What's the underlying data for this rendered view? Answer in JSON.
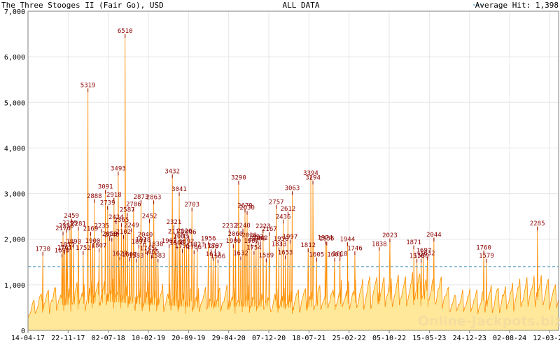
{
  "header": {
    "title": "The Three Stooges II (Fair Go), USD",
    "center_label": "ALL DATA",
    "legend_label": "Average Hit: 1,398"
  },
  "watermark": "Online-Jackpots.biz",
  "colors": {
    "fill": "#ffe89a",
    "line": "#ff8c00",
    "average": "#3a8fb7",
    "grid": "#e6e6e6",
    "peak_label": "#8b0000"
  },
  "chart_data": {
    "type": "area",
    "title": "The Three Stooges II (Fair Go), USD",
    "xlabel": "",
    "ylabel": "",
    "ylim": [
      0,
      7000
    ],
    "y_ticks": [
      "0",
      "1,000",
      "2,000",
      "3,000",
      "4,000",
      "5,000",
      "6,000",
      "7,000"
    ],
    "y_tick_values": [
      0,
      1000,
      2000,
      3000,
      4000,
      5000,
      6000,
      7000
    ],
    "x_ticks": [
      "14-04-17",
      "22-11-17",
      "02-07-18",
      "10-02-19",
      "20-09-19",
      "29-04-20",
      "07-12-20",
      "18-07-21",
      "25-02-22",
      "05-10-22",
      "15-05-23",
      "24-12-23",
      "02-08-24",
      "12-03-25"
    ],
    "average_hit": 1398,
    "grid": true,
    "legend_position": "top-right",
    "peaks": [
      {
        "t": 0.028,
        "v": 1730
      },
      {
        "t": 0.066,
        "v": 2176
      },
      {
        "t": 0.072,
        "v": 2236
      },
      {
        "t": 0.079,
        "v": 2295
      },
      {
        "t": 0.082,
        "v": 2459
      },
      {
        "t": 0.064,
        "v": 1693
      },
      {
        "t": 0.069,
        "v": 1761
      },
      {
        "t": 0.074,
        "v": 1817
      },
      {
        "t": 0.086,
        "v": 1890
      },
      {
        "t": 0.095,
        "v": 2281
      },
      {
        "t": 0.104,
        "v": 1752
      },
      {
        "t": 0.113,
        "v": 5319
      },
      {
        "t": 0.118,
        "v": 2169
      },
      {
        "t": 0.122,
        "v": 1900
      },
      {
        "t": 0.125,
        "v": 2888
      },
      {
        "t": 0.134,
        "v": 1807
      },
      {
        "t": 0.139,
        "v": 2235
      },
      {
        "t": 0.146,
        "v": 3091
      },
      {
        "t": 0.15,
        "v": 2739
      },
      {
        "t": 0.154,
        "v": 2058
      },
      {
        "t": 0.158,
        "v": 2040
      },
      {
        "t": 0.162,
        "v": 2918
      },
      {
        "t": 0.166,
        "v": 2424
      },
      {
        "t": 0.17,
        "v": 3493
      },
      {
        "t": 0.173,
        "v": 1627
      },
      {
        "t": 0.176,
        "v": 2365
      },
      {
        "t": 0.18,
        "v": 2102
      },
      {
        "t": 0.183,
        "v": 6510
      },
      {
        "t": 0.187,
        "v": 2587
      },
      {
        "t": 0.191,
        "v": 1607
      },
      {
        "t": 0.195,
        "v": 2249
      },
      {
        "t": 0.199,
        "v": 2706
      },
      {
        "t": 0.204,
        "v": 1583
      },
      {
        "t": 0.209,
        "v": 1891
      },
      {
        "t": 0.213,
        "v": 2873
      },
      {
        "t": 0.217,
        "v": 1928
      },
      {
        "t": 0.221,
        "v": 2040
      },
      {
        "t": 0.225,
        "v": 1745
      },
      {
        "t": 0.229,
        "v": 2452
      },
      {
        "t": 0.233,
        "v": 1665
      },
      {
        "t": 0.237,
        "v": 2863
      },
      {
        "t": 0.241,
        "v": 1838
      },
      {
        "t": 0.245,
        "v": 1583
      },
      {
        "t": 0.266,
        "v": 1902
      },
      {
        "t": 0.272,
        "v": 3432
      },
      {
        "t": 0.275,
        "v": 2321
      },
      {
        "t": 0.278,
        "v": 2111
      },
      {
        "t": 0.281,
        "v": 1868
      },
      {
        "t": 0.285,
        "v": 3041
      },
      {
        "t": 0.288,
        "v": 2003
      },
      {
        "t": 0.291,
        "v": 1795
      },
      {
        "t": 0.295,
        "v": 2120
      },
      {
        "t": 0.299,
        "v": 1892
      },
      {
        "t": 0.303,
        "v": 2096
      },
      {
        "t": 0.309,
        "v": 2703
      },
      {
        "t": 0.313,
        "v": 1766
      },
      {
        "t": 0.319,
        "v": 1823
      },
      {
        "t": 0.34,
        "v": 1956
      },
      {
        "t": 0.345,
        "v": 1786
      },
      {
        "t": 0.349,
        "v": 1613
      },
      {
        "t": 0.353,
        "v": 1797
      },
      {
        "t": 0.358,
        "v": 1566
      },
      {
        "t": 0.38,
        "v": 2232
      },
      {
        "t": 0.387,
        "v": 1900
      },
      {
        "t": 0.391,
        "v": 2060
      },
      {
        "t": 0.397,
        "v": 3290
      },
      {
        "t": 0.401,
        "v": 1632
      },
      {
        "t": 0.405,
        "v": 2240
      },
      {
        "t": 0.409,
        "v": 2679
      },
      {
        "t": 0.413,
        "v": 2630
      },
      {
        "t": 0.417,
        "v": 2028
      },
      {
        "t": 0.421,
        "v": 1907
      },
      {
        "t": 0.426,
        "v": 1754
      },
      {
        "t": 0.43,
        "v": 1992
      },
      {
        "t": 0.434,
        "v": 1960
      },
      {
        "t": 0.438,
        "v": 1962
      },
      {
        "t": 0.443,
        "v": 2223
      },
      {
        "t": 0.449,
        "v": 1589
      },
      {
        "t": 0.455,
        "v": 2167
      },
      {
        "t": 0.468,
        "v": 2757
      },
      {
        "t": 0.473,
        "v": 1833
      },
      {
        "t": 0.477,
        "v": 1950
      },
      {
        "t": 0.481,
        "v": 2436
      },
      {
        "t": 0.485,
        "v": 1653
      },
      {
        "t": 0.49,
        "v": 2612
      },
      {
        "t": 0.494,
        "v": 1997
      },
      {
        "t": 0.498,
        "v": 3063
      },
      {
        "t": 0.528,
        "v": 1812
      },
      {
        "t": 0.533,
        "v": 3394
      },
      {
        "t": 0.537,
        "v": 3294
      },
      {
        "t": 0.544,
        "v": 1605
      },
      {
        "t": 0.56,
        "v": 1974
      },
      {
        "t": 0.563,
        "v": 1955
      },
      {
        "t": 0.578,
        "v": 1601
      },
      {
        "t": 0.588,
        "v": 1618
      },
      {
        "t": 0.602,
        "v": 1944
      },
      {
        "t": 0.616,
        "v": 1746
      },
      {
        "t": 0.662,
        "v": 1838
      },
      {
        "t": 0.682,
        "v": 2023
      },
      {
        "t": 0.727,
        "v": 1871
      },
      {
        "t": 0.733,
        "v": 1576
      },
      {
        "t": 0.741,
        "v": 1580
      },
      {
        "t": 0.746,
        "v": 1697
      },
      {
        "t": 0.753,
        "v": 1632
      },
      {
        "t": 0.765,
        "v": 2044
      },
      {
        "t": 0.859,
        "v": 1760
      },
      {
        "t": 0.864,
        "v": 1579
      },
      {
        "t": 0.96,
        "v": 2285
      }
    ]
  }
}
